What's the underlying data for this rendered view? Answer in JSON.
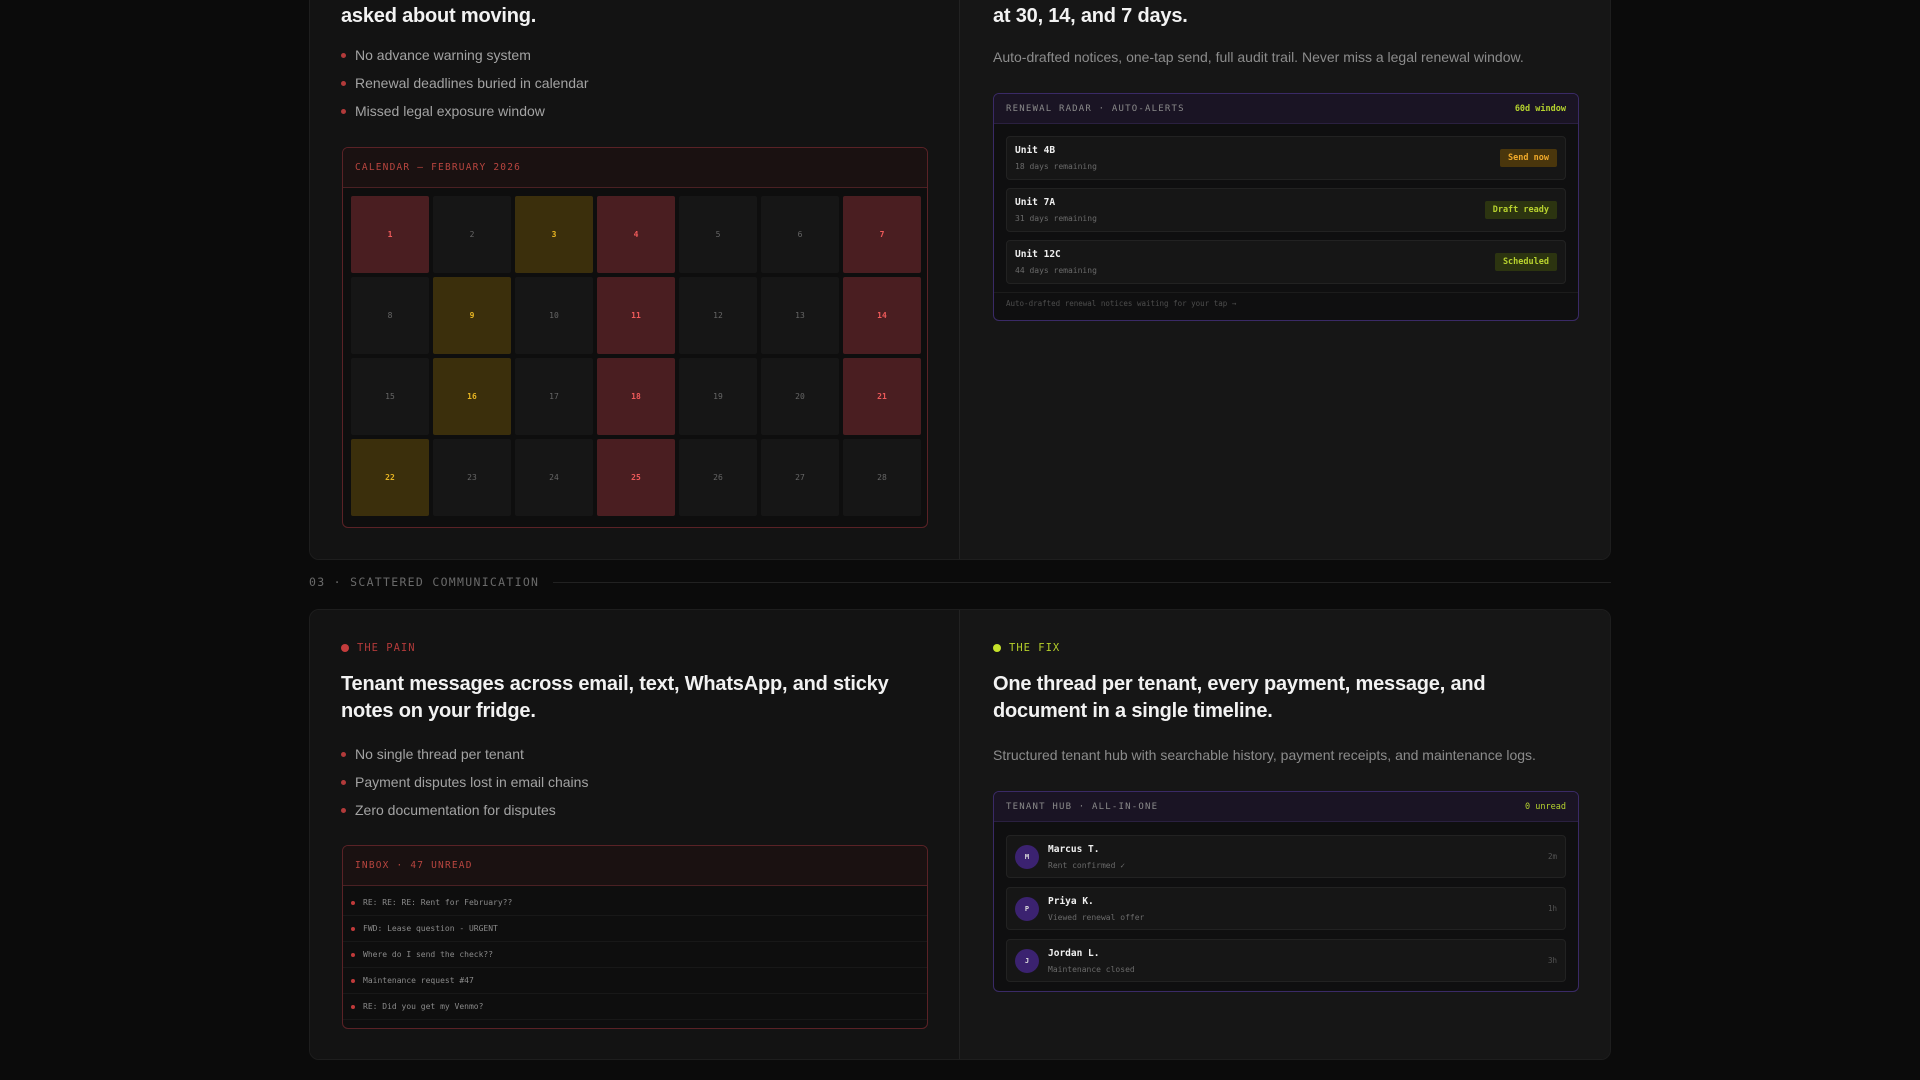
{
  "section2": {
    "pain": {
      "headline_tail": "asked about moving.",
      "bullets": [
        "No advance warning system",
        "Renewal deadlines buried in calendar",
        "Missed legal exposure window"
      ],
      "calendar": {
        "title": "CALENDAR — FEBRUARY 2026",
        "days": [
          1,
          2,
          3,
          4,
          5,
          6,
          7,
          8,
          9,
          10,
          11,
          12,
          13,
          14,
          15,
          16,
          17,
          18,
          19,
          20,
          21,
          22,
          23,
          24,
          25,
          26,
          27,
          28
        ],
        "red_days": [
          1,
          4,
          7,
          11,
          14,
          18,
          21,
          25
        ],
        "yellow_days": [
          3,
          9,
          16,
          22
        ]
      }
    },
    "fix": {
      "headline_tail": "at 30, 14, and 7 days.",
      "subtitle": "Auto-drafted notices, one-tap send, full audit trail. Never miss a legal renewal window.",
      "radar": {
        "title": "RENEWAL RADAR · AUTO-ALERTS",
        "window": "60d window",
        "units": [
          {
            "name": "Unit 4B",
            "remaining": "18 days remaining",
            "action": "Send now",
            "status": "urgent"
          },
          {
            "name": "Unit 7A",
            "remaining": "31 days remaining",
            "action": "Draft ready",
            "status": "ready"
          },
          {
            "name": "Unit 12C",
            "remaining": "44 days remaining",
            "action": "Scheduled",
            "status": "ready"
          }
        ],
        "footer": "Auto-drafted renewal notices waiting for your tap →"
      }
    }
  },
  "section3": {
    "label": "03 · SCATTERED COMMUNICATION",
    "pain": {
      "tag": "THE PAIN",
      "headline": "Tenant messages across email, text, WhatsApp, and sticky notes on your fridge.",
      "bullets": [
        "No single thread per tenant",
        "Payment disputes lost in email chains",
        "Zero documentation for disputes"
      ],
      "inbox": {
        "title": "INBOX · 47 UNREAD",
        "messages": [
          "RE: RE: RE: Rent for February??",
          "FWD: Lease question - URGENT",
          "Where do I send the check??",
          "Maintenance request #47",
          "RE: Did you get my Venmo?"
        ]
      }
    },
    "fix": {
      "tag": "THE FIX",
      "headline": "One thread per tenant, every payment, message, and document in a single timeline.",
      "subtitle": "Structured tenant hub with searchable history, payment receipts, and maintenance logs.",
      "hub": {
        "title": "TENANT HUB · ALL-IN-ONE",
        "unread": "0 unread",
        "tenants": [
          {
            "initial": "M",
            "name": "Marcus T.",
            "status": "Rent confirmed ✓",
            "time": "2m"
          },
          {
            "initial": "P",
            "name": "Priya K.",
            "status": "Viewed renewal offer",
            "time": "1h"
          },
          {
            "initial": "J",
            "name": "Jordan L.",
            "status": "Maintenance closed",
            "time": "3h"
          }
        ]
      }
    }
  },
  "colors": {
    "pain": "#b23a3a",
    "fix": "#c6e22a",
    "hub_accent": "#3b2270"
  }
}
